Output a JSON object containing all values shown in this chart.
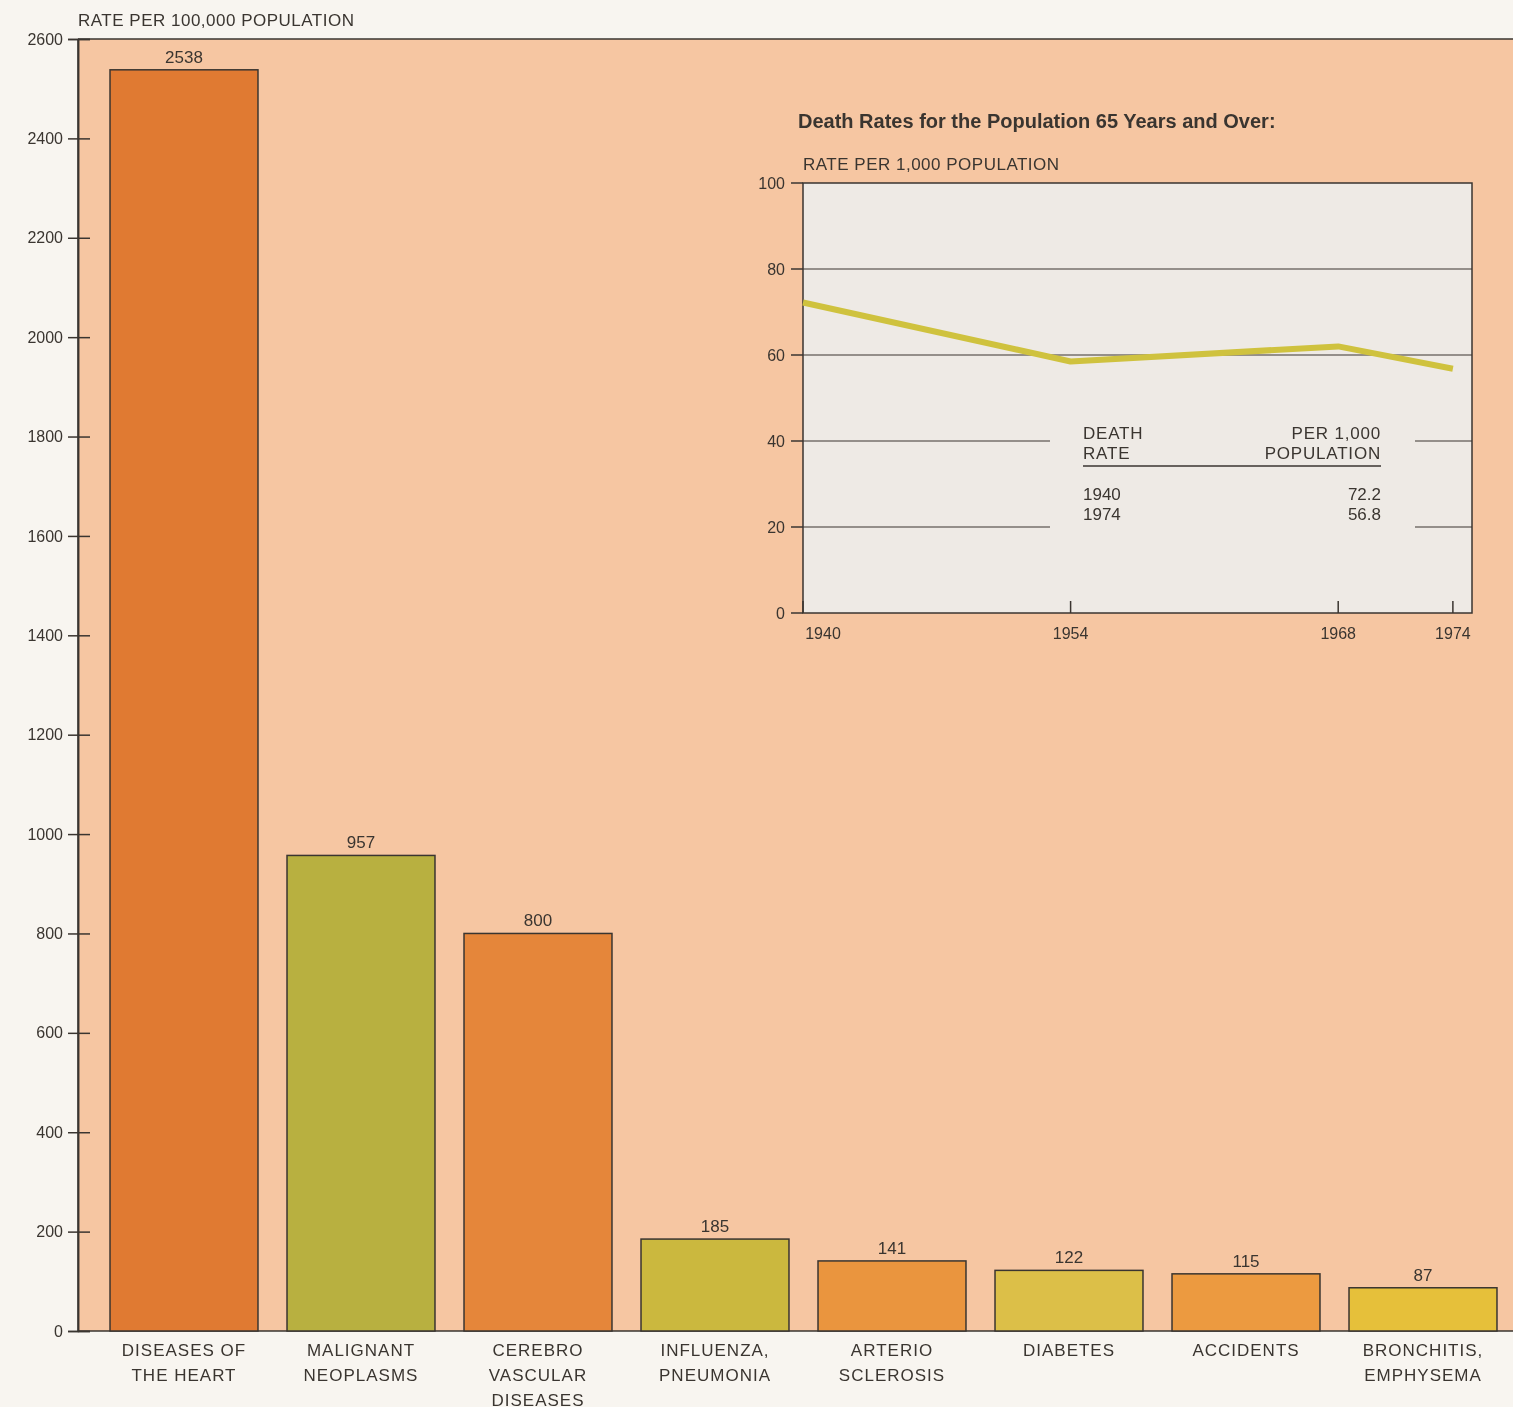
{
  "chart_data": [
    {
      "type": "bar",
      "ylabel": "RATE PER 100,000 POPULATION",
      "categories": [
        "DISEASES OF THE HEART",
        "MALIGNANT NEOPLASMS",
        "CEREBRO VASCULAR DISEASES",
        "INFLUENZA, PNEUMONIA",
        "ARTERIO SCLEROSIS",
        "DIABETES",
        "ACCIDENTS",
        "BRONCHITIS, EMPHYSEMA"
      ],
      "values": [
        2538,
        957,
        800,
        185,
        141,
        122,
        115,
        87
      ],
      "colors": [
        "#e07a32",
        "#b8b040",
        "#e5863a",
        "#cbb83e",
        "#ea953e",
        "#dcbf48",
        "#ec9a40",
        "#e6c03a"
      ],
      "ylim": [
        0,
        2600
      ],
      "yticks": [
        0,
        200,
        400,
        600,
        800,
        1000,
        1200,
        1400,
        1600,
        1800,
        2000,
        2200,
        2400,
        2600
      ],
      "data_labels": true,
      "grid": false
    },
    {
      "type": "line",
      "title": "Death Rates for the Population 65 Years and Over:",
      "ylabel": "RATE PER 1,000 POPULATION",
      "x": [
        1940,
        1954,
        1968,
        1974
      ],
      "series": [
        {
          "color": "#cfc23e",
          "values": [
            72.2,
            58.5,
            62,
            56.8
          ]
        }
      ],
      "xlim": [
        1940,
        1975
      ],
      "xticks": [
        1940,
        1954,
        1968,
        1974
      ],
      "ylim": [
        0,
        100
      ],
      "yticks": [
        0,
        20,
        40,
        60,
        80,
        100
      ],
      "grid": "y",
      "marker": "none",
      "line_style": "solid",
      "annotations": [
        "DEATH RATE",
        "PER 1,000 POPULATION",
        "1940",
        "72.2",
        "1974",
        "56.8"
      ]
    }
  ]
}
